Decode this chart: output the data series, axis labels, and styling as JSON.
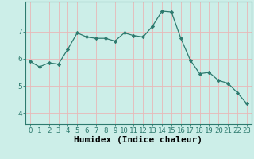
{
  "x": [
    0,
    1,
    2,
    3,
    4,
    5,
    6,
    7,
    8,
    9,
    10,
    11,
    12,
    13,
    14,
    15,
    16,
    17,
    18,
    19,
    20,
    21,
    22,
    23
  ],
  "y": [
    5.9,
    5.7,
    5.85,
    5.8,
    6.35,
    6.95,
    6.8,
    6.75,
    6.75,
    6.65,
    6.95,
    6.85,
    6.8,
    7.2,
    7.75,
    7.72,
    6.75,
    5.95,
    5.45,
    5.5,
    5.2,
    5.1,
    4.75,
    4.35
  ],
  "line_color": "#2d7a6e",
  "marker": "D",
  "marker_size": 2.2,
  "bg_color": "#cceee8",
  "grid_color": "#e8b8b8",
  "xlabel": "Humidex (Indice chaleur)",
  "ylim": [
    3.6,
    8.1
  ],
  "xlim": [
    -0.5,
    23.5
  ],
  "yticks": [
    4,
    5,
    6,
    7
  ],
  "xticks": [
    0,
    1,
    2,
    3,
    4,
    5,
    6,
    7,
    8,
    9,
    10,
    11,
    12,
    13,
    14,
    15,
    16,
    17,
    18,
    19,
    20,
    21,
    22,
    23
  ],
  "tick_fontsize": 6.5,
  "xlabel_fontsize": 8,
  "spine_color": "#2d7a6e"
}
